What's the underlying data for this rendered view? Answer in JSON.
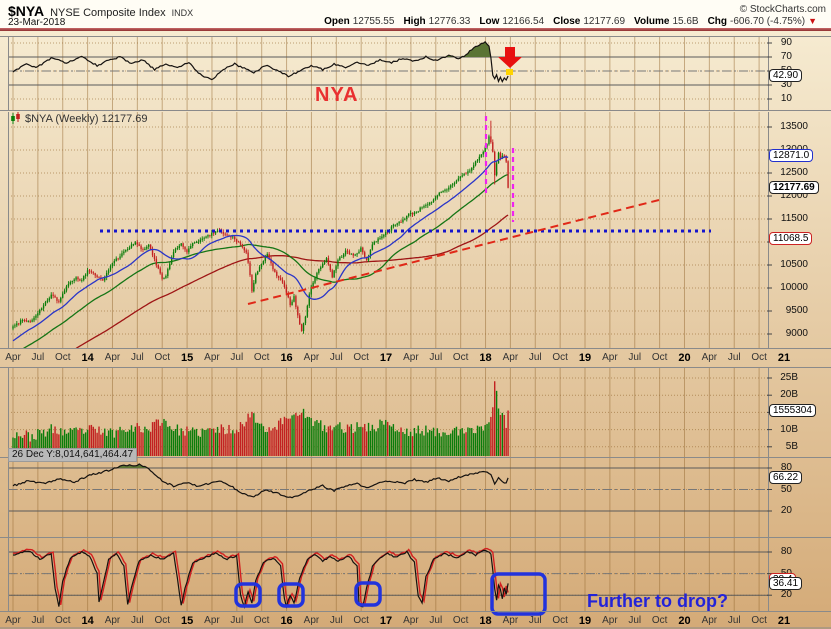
{
  "header": {
    "symbol": "$NYA",
    "name": "NYSE Composite Index",
    "exchange": "INDX",
    "date": "23-Mar-2018",
    "copyright": "© StockCharts.com",
    "quote": [
      [
        "Open",
        "12755.55"
      ],
      [
        "High",
        "12776.33"
      ],
      [
        "Low",
        "12166.54"
      ],
      [
        "Close",
        "12177.69"
      ],
      [
        "Volume",
        "15.6B"
      ],
      [
        "Chg",
        "-606.70 (-4.75%)"
      ]
    ],
    "chg_arrow": "▼"
  },
  "price_label": "$NYA (Weekly) 12177.69",
  "annotations": {
    "index_name": "NYA",
    "question": "Further to drop?",
    "volume_tooltip": "26 Dec Y:8,014,641,464.47"
  },
  "axis": {
    "p1_ticks": [
      "90",
      "70",
      "50",
      "30",
      "10"
    ],
    "price_ticks": [
      "13500",
      "13000",
      "12500",
      "12000",
      "11500",
      "11000",
      "10500",
      "10000",
      "9500",
      "9000"
    ],
    "vol_ticks": [
      "25B",
      "20B",
      "15B",
      "10B",
      "5B"
    ],
    "p4_ticks": [
      "80",
      "50",
      "20"
    ],
    "p5_ticks": [
      "80",
      "50",
      "20"
    ],
    "x_labels": [
      "Apr",
      "Jul",
      "Oct",
      "14",
      "Apr",
      "Jul",
      "Oct",
      "15",
      "Apr",
      "Jul",
      "Oct",
      "16",
      "Apr",
      "Jul",
      "Oct",
      "17",
      "Apr",
      "Jul",
      "Oct",
      "18",
      "Apr",
      "Jul",
      "Oct",
      "19",
      "Apr",
      "Jul",
      "Oct",
      "20",
      "Apr",
      "Jul",
      "Oct",
      "21"
    ]
  },
  "badges": {
    "p1": {
      "text": "42.90",
      "value": 42.9,
      "style": "b-k",
      "bold": false
    },
    "ma_blue": {
      "text": "12871.0",
      "value": 12871.0,
      "style": "b-blue",
      "bold": false
    },
    "close": {
      "text": "12177.69",
      "value": 12177.69,
      "style": "b-k",
      "bold": true
    },
    "ma_red": {
      "text": "11068.5",
      "value": 11068.5,
      "style": "b-red",
      "bold": false
    },
    "volume": {
      "text": "1555304",
      "value": 15.55,
      "style": "b-k",
      "bold": false
    },
    "p4": {
      "text": "66.22",
      "value": 66.22,
      "style": "b-k",
      "bold": false
    },
    "p5_red": {
      "text": "38.4",
      "value": 38.4,
      "style": "b-red",
      "bold": false
    },
    "p5": {
      "text": "36.41",
      "value": 36.41,
      "style": "b-k",
      "bold": false
    }
  },
  "colors": {
    "up": "#0a7d0a",
    "down": "#c22020",
    "ma_blue": "#2a35c8",
    "ma_green": "#157515",
    "ma_red": "#9e1515",
    "osc_line": "#151210",
    "osc_red_line": "#d42020",
    "fill_green": "#5a7434",
    "anno_blue": "#1414cc",
    "anno_red_dash": "#e02818",
    "magenta": "#f022f0",
    "box_blue": "#2233dd",
    "arrow_red": "#e81010",
    "arrow_yellow": "#ffd400",
    "note_blue": "#2323d8",
    "title_red": "#e93030"
  },
  "chart_data": {
    "type": "candlestick",
    "title": "$NYA (Weekly) 12177.69",
    "timeframe": "weekly",
    "x_range": "Apr 2013 through 2021 (data ends 23-Mar-2018, right side blank)",
    "price_ylim": [
      9000,
      13500
    ],
    "last_bar_ohlc": {
      "open": 12755.55,
      "high": 12776.33,
      "low": 12166.54,
      "close": 12177.69,
      "volume_B": 15.55,
      "change": "-606.70 (-4.75%)"
    },
    "panels": [
      {
        "name": "top_oscillator",
        "ylim_ticks": [
          90,
          70,
          50,
          30,
          10
        ],
        "last_value": 42.9
      },
      {
        "name": "price",
        "ticks_step": 500,
        "last_close": 12177.69,
        "ma_blue_last": 12871.0,
        "ma_red_last": 11068.5
      },
      {
        "name": "volume",
        "ticks_B": [
          25,
          20,
          15,
          10,
          5
        ],
        "last_value_B": 15.55,
        "hover_readout": "26 Dec Y:8,014,641,464.47"
      },
      {
        "name": "mid_oscillator",
        "ylim_ticks": [
          80,
          50,
          20
        ],
        "last_value": 66.22
      },
      {
        "name": "bottom_oscillator",
        "ylim_ticks": [
          80,
          50,
          20
        ],
        "last_value_black": 36.41,
        "last_value_red": 38.4
      }
    ],
    "price_keypoints_weekly": [
      [
        -105,
        7350
      ],
      [
        -95,
        7800
      ],
      [
        -85,
        6950
      ],
      [
        -75,
        7400
      ],
      [
        -65,
        7800
      ],
      [
        -55,
        7650
      ],
      [
        -45,
        8050
      ],
      [
        -35,
        8200
      ],
      [
        -25,
        8450
      ],
      [
        -15,
        8700
      ],
      [
        -5,
        8950
      ],
      [
        0,
        9150
      ],
      [
        5,
        9300
      ],
      [
        10,
        9280
      ],
      [
        15,
        9550
      ],
      [
        20,
        9850
      ],
      [
        24,
        9700
      ],
      [
        28,
        10050
      ],
      [
        33,
        10250
      ],
      [
        36,
        10150
      ],
      [
        39,
        10400
      ],
      [
        43,
        10280
      ],
      [
        47,
        10150
      ],
      [
        52,
        10550
      ],
      [
        56,
        10700
      ],
      [
        60,
        10850
      ],
      [
        64,
        11000
      ],
      [
        68,
        10800
      ],
      [
        71,
        10950
      ],
      [
        75,
        10500
      ],
      [
        78,
        10200
      ],
      [
        80,
        10250
      ],
      [
        84,
        10800
      ],
      [
        88,
        10950
      ],
      [
        91,
        10800
      ],
      [
        95,
        11000
      ],
      [
        99,
        11050
      ],
      [
        103,
        11150
      ],
      [
        107,
        11250
      ],
      [
        111,
        11150
      ],
      [
        115,
        11100
      ],
      [
        119,
        10950
      ],
      [
        122,
        10750
      ],
      [
        124,
        10300
      ],
      [
        125,
        9950
      ],
      [
        127,
        10300
      ],
      [
        130,
        10500
      ],
      [
        133,
        10750
      ],
      [
        136,
        10400
      ],
      [
        139,
        10200
      ],
      [
        142,
        10050
      ],
      [
        145,
        9650
      ],
      [
        147,
        9800
      ],
      [
        149,
        9400
      ],
      [
        151,
        9050
      ],
      [
        153,
        9400
      ],
      [
        156,
        10050
      ],
      [
        160,
        10400
      ],
      [
        164,
        10650
      ],
      [
        167,
        10250
      ],
      [
        170,
        10600
      ],
      [
        174,
        10800
      ],
      [
        178,
        10700
      ],
      [
        182,
        10850
      ],
      [
        185,
        10600
      ],
      [
        188,
        10950
      ],
      [
        192,
        11100
      ],
      [
        195,
        11200
      ],
      [
        199,
        11350
      ],
      [
        203,
        11450
      ],
      [
        207,
        11600
      ],
      [
        211,
        11650
      ],
      [
        215,
        11800
      ],
      [
        219,
        11850
      ],
      [
        223,
        12050
      ],
      [
        227,
        12150
      ],
      [
        231,
        12300
      ],
      [
        235,
        12450
      ],
      [
        239,
        12550
      ],
      [
        243,
        12800
      ],
      [
        246,
        12950
      ],
      [
        248,
        13150
      ],
      [
        249,
        13300
      ],
      [
        250,
        13170
      ],
      [
        251,
        12950
      ],
      [
        252,
        12450
      ],
      [
        253,
        12700
      ],
      [
        254,
        12950
      ],
      [
        255,
        12800
      ],
      [
        256,
        12900
      ],
      [
        257,
        12850
      ],
      [
        258,
        12750
      ],
      [
        259,
        12177.69
      ]
    ],
    "volume_keypoints_B": [
      [
        -105,
        9
      ],
      [
        0,
        9
      ],
      [
        10,
        8
      ],
      [
        20,
        10
      ],
      [
        30,
        9
      ],
      [
        40,
        10
      ],
      [
        52,
        9
      ],
      [
        60,
        11
      ],
      [
        70,
        10
      ],
      [
        78,
        13
      ],
      [
        85,
        10
      ],
      [
        95,
        9
      ],
      [
        105,
        10
      ],
      [
        115,
        10
      ],
      [
        122,
        12
      ],
      [
        125,
        16
      ],
      [
        128,
        12
      ],
      [
        135,
        10
      ],
      [
        140,
        12
      ],
      [
        145,
        14
      ],
      [
        149,
        15
      ],
      [
        151,
        16
      ],
      [
        154,
        13
      ],
      [
        158,
        12
      ],
      [
        165,
        10
      ],
      [
        170,
        11
      ],
      [
        178,
        10
      ],
      [
        182,
        12
      ],
      [
        188,
        10
      ],
      [
        195,
        13
      ],
      [
        200,
        10
      ],
      [
        207,
        9
      ],
      [
        214,
        10
      ],
      [
        221,
        9
      ],
      [
        228,
        10
      ],
      [
        235,
        9
      ],
      [
        242,
        10
      ],
      [
        246,
        11
      ],
      [
        249,
        12
      ],
      [
        251,
        17
      ],
      [
        252,
        24
      ],
      [
        253,
        21
      ],
      [
        254,
        16
      ],
      [
        255,
        13
      ],
      [
        256,
        14
      ],
      [
        257,
        13
      ],
      [
        258,
        12
      ],
      [
        259,
        15.55
      ]
    ],
    "p1_keypoints": [
      [
        0,
        48
      ],
      [
        6,
        60
      ],
      [
        12,
        55
      ],
      [
        20,
        68
      ],
      [
        28,
        62
      ],
      [
        36,
        70
      ],
      [
        44,
        58
      ],
      [
        50,
        65
      ],
      [
        56,
        70
      ],
      [
        62,
        60
      ],
      [
        68,
        66
      ],
      [
        74,
        52
      ],
      [
        80,
        60
      ],
      [
        86,
        55
      ],
      [
        92,
        62
      ],
      [
        98,
        45
      ],
      [
        104,
        38
      ],
      [
        110,
        52
      ],
      [
        116,
        60
      ],
      [
        120,
        55
      ],
      [
        126,
        48
      ],
      [
        132,
        58
      ],
      [
        138,
        52
      ],
      [
        144,
        42
      ],
      [
        150,
        50
      ],
      [
        156,
        58
      ],
      [
        162,
        52
      ],
      [
        168,
        60
      ],
      [
        174,
        55
      ],
      [
        180,
        63
      ],
      [
        186,
        58
      ],
      [
        192,
        66
      ],
      [
        198,
        62
      ],
      [
        204,
        68
      ],
      [
        210,
        64
      ],
      [
        216,
        70
      ],
      [
        222,
        65
      ],
      [
        228,
        72
      ],
      [
        234,
        68
      ],
      [
        240,
        80
      ],
      [
        244,
        88
      ],
      [
        247,
        92
      ],
      [
        249,
        85
      ],
      [
        250,
        70
      ],
      [
        251,
        45
      ],
      [
        252,
        38
      ],
      [
        253,
        44
      ],
      [
        254,
        36
      ],
      [
        255,
        42
      ],
      [
        256,
        34
      ],
      [
        257,
        40
      ],
      [
        258,
        36
      ],
      [
        259,
        42.9
      ]
    ],
    "p4_keypoints": [
      [
        0,
        55
      ],
      [
        8,
        62
      ],
      [
        16,
        58
      ],
      [
        24,
        65
      ],
      [
        32,
        60
      ],
      [
        40,
        70
      ],
      [
        48,
        75
      ],
      [
        54,
        80
      ],
      [
        58,
        84
      ],
      [
        62,
        83
      ],
      [
        66,
        85
      ],
      [
        70,
        80
      ],
      [
        74,
        72
      ],
      [
        78,
        62
      ],
      [
        84,
        55
      ],
      [
        90,
        60
      ],
      [
        96,
        55
      ],
      [
        102,
        58
      ],
      [
        108,
        62
      ],
      [
        114,
        55
      ],
      [
        120,
        45
      ],
      [
        126,
        40
      ],
      [
        132,
        50
      ],
      [
        138,
        45
      ],
      [
        144,
        38
      ],
      [
        150,
        42
      ],
      [
        156,
        50
      ],
      [
        162,
        55
      ],
      [
        168,
        48
      ],
      [
        174,
        55
      ],
      [
        180,
        58
      ],
      [
        186,
        52
      ],
      [
        192,
        60
      ],
      [
        198,
        62
      ],
      [
        204,
        58
      ],
      [
        210,
        64
      ],
      [
        216,
        60
      ],
      [
        222,
        66
      ],
      [
        228,
        62
      ],
      [
        234,
        68
      ],
      [
        240,
        72
      ],
      [
        246,
        75
      ],
      [
        250,
        72
      ],
      [
        252,
        58
      ],
      [
        254,
        66
      ],
      [
        256,
        62
      ],
      [
        258,
        58
      ],
      [
        259,
        66.22
      ]
    ],
    "p5_keypoints": [
      [
        0,
        75
      ],
      [
        8,
        82
      ],
      [
        14,
        70
      ],
      [
        20,
        78
      ],
      [
        22,
        30
      ],
      [
        24,
        5
      ],
      [
        26,
        40
      ],
      [
        30,
        72
      ],
      [
        36,
        80
      ],
      [
        40,
        75
      ],
      [
        44,
        50
      ],
      [
        45,
        10
      ],
      [
        47,
        35
      ],
      [
        50,
        70
      ],
      [
        54,
        78
      ],
      [
        58,
        60
      ],
      [
        60,
        8
      ],
      [
        62,
        30
      ],
      [
        66,
        68
      ],
      [
        72,
        75
      ],
      [
        78,
        70
      ],
      [
        84,
        78
      ],
      [
        87,
        25
      ],
      [
        88,
        5
      ],
      [
        90,
        30
      ],
      [
        94,
        65
      ],
      [
        100,
        72
      ],
      [
        106,
        78
      ],
      [
        112,
        70
      ],
      [
        117,
        75
      ],
      [
        119,
        20
      ],
      [
        121,
        4
      ],
      [
        123,
        25
      ],
      [
        125,
        10
      ],
      [
        127,
        40
      ],
      [
        131,
        65
      ],
      [
        136,
        72
      ],
      [
        140,
        60
      ],
      [
        142,
        15
      ],
      [
        143,
        5
      ],
      [
        145,
        20
      ],
      [
        147,
        8
      ],
      [
        150,
        45
      ],
      [
        154,
        70
      ],
      [
        158,
        76
      ],
      [
        162,
        68
      ],
      [
        166,
        74
      ],
      [
        170,
        68
      ],
      [
        176,
        74
      ],
      [
        180,
        60
      ],
      [
        181,
        8
      ],
      [
        183,
        3
      ],
      [
        185,
        30
      ],
      [
        188,
        60
      ],
      [
        192,
        72
      ],
      [
        196,
        78
      ],
      [
        200,
        72
      ],
      [
        206,
        80
      ],
      [
        210,
        65
      ],
      [
        212,
        20
      ],
      [
        214,
        10
      ],
      [
        216,
        45
      ],
      [
        220,
        70
      ],
      [
        226,
        78
      ],
      [
        232,
        72
      ],
      [
        238,
        80
      ],
      [
        242,
        76
      ],
      [
        246,
        82
      ],
      [
        250,
        78
      ],
      [
        252,
        30
      ],
      [
        253,
        12
      ],
      [
        254,
        35
      ],
      [
        255,
        28
      ],
      [
        256,
        15
      ],
      [
        257,
        30
      ],
      [
        258,
        22
      ],
      [
        259,
        36.41
      ]
    ],
    "drawn_annotations": {
      "blue_dotted_support_level": 11240,
      "red_dashed_trendline": "rising from mid-2015 lows toward late-2019",
      "magenta_vertical_dashed_lines": "two, at Jan-2018 peak and Mar-2018",
      "red_down_arrow": "above top oscillator at the Feb-2018 breakdown",
      "blue_boxes": "circle bottom-oscillator lows mid-2015, early-2016, late-2016 and an empty box at Mar-2018"
    }
  }
}
